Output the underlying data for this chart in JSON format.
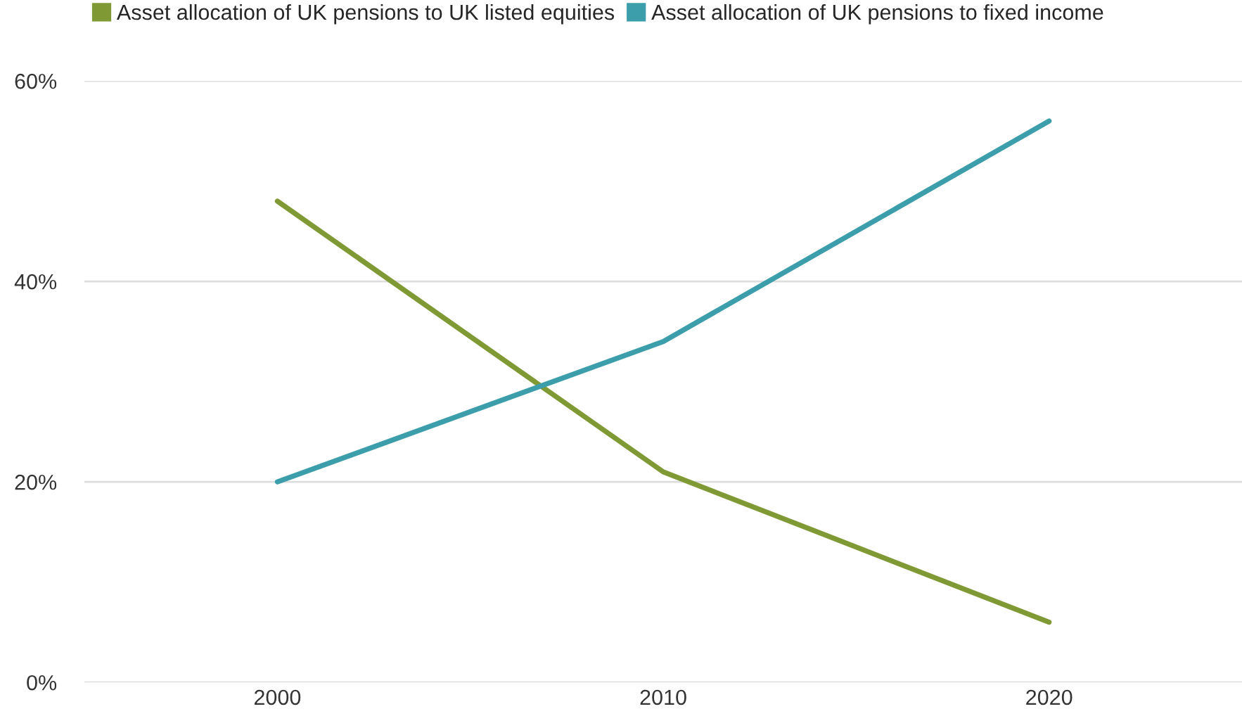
{
  "chart_data": {
    "type": "line",
    "categories": [
      "2000",
      "2010",
      "2020"
    ],
    "series": [
      {
        "name": "Asset allocation of UK pensions to UK listed equities",
        "color": "#7f9a35",
        "values": [
          48,
          21,
          6
        ]
      },
      {
        "name": "Asset allocation of UK pensions to fixed income",
        "color": "#3d9eab",
        "values": [
          20,
          34,
          56
        ]
      }
    ],
    "ylim": [
      0,
      60
    ],
    "yticks": [
      {
        "value": 0,
        "label": "0%"
      },
      {
        "value": 20,
        "label": "20%"
      },
      {
        "value": 40,
        "label": "40%"
      },
      {
        "value": 60,
        "label": "60%"
      }
    ],
    "grid": "y",
    "legend": "top left",
    "marker": "none",
    "line_style": "solid"
  }
}
